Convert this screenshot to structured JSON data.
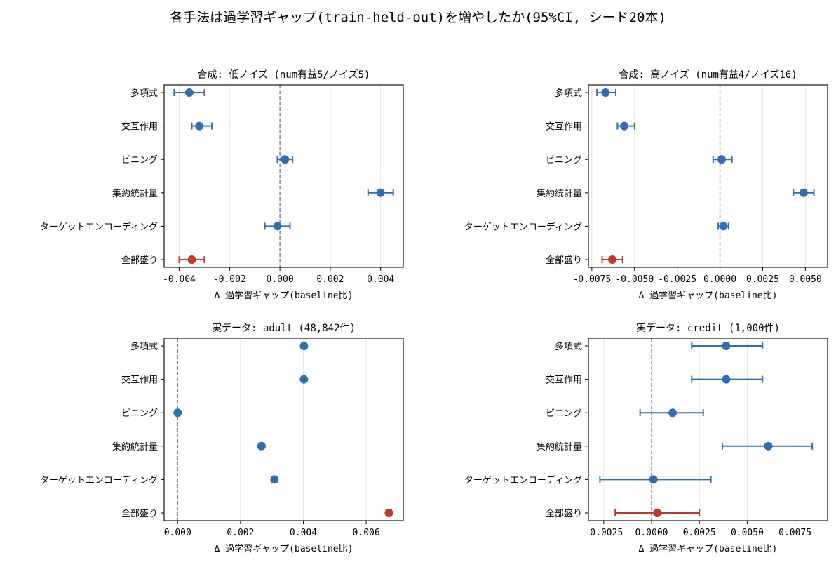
{
  "figure": {
    "title": "各手法は過学習ギャップ(train-held-out)を増やしたか(95%CI, シード20本)"
  },
  "colors": {
    "method": "#2f6db5",
    "combined": "#c0392b",
    "zero_line": "#808080",
    "grid": "#e6e6e6"
  },
  "chart_data": [
    {
      "type": "scatter",
      "subtype": "dot-and-whisker",
      "title": "合成: 低ノイズ (num有益5/ノイズ5)",
      "xlabel": "Δ 過学習ギャップ(baseline比)",
      "categories": [
        "多項式",
        "交互作用",
        "ビニング",
        "集約統計量",
        "ターゲットエンコーディング",
        "全部盛り"
      ],
      "values": [
        -0.0036,
        -0.0032,
        0.0002,
        0.004,
        -0.0001,
        -0.0035
      ],
      "ci_low": [
        -0.0042,
        -0.0035,
        -0.0001,
        0.0035,
        -0.0006,
        -0.004
      ],
      "ci_high": [
        -0.003,
        -0.0027,
        0.0005,
        0.0045,
        0.0004,
        -0.003
      ],
      "xlim": [
        -0.0046,
        0.0049
      ],
      "xticks": [
        -0.004,
        -0.002,
        0.0,
        0.002,
        0.004
      ],
      "xtick_labels": [
        "-0.004",
        "-0.002",
        "0.000",
        "0.002",
        "0.004"
      ],
      "reference_line": 0,
      "grid": "x",
      "highlight": "全部盛り"
    },
    {
      "type": "scatter",
      "subtype": "dot-and-whisker",
      "title": "合成: 高ノイズ (num有益4/ノイズ16)",
      "xlabel": "Δ 過学習ギャップ(baseline比)",
      "categories": [
        "多項式",
        "交互作用",
        "ビニング",
        "集約統計量",
        "ターゲットエンコーディング",
        "全部盛り"
      ],
      "values": [
        -0.0067,
        -0.0056,
        0.0001,
        0.0049,
        0.0002,
        -0.0063
      ],
      "ci_low": [
        -0.0072,
        -0.006,
        -0.0004,
        0.0043,
        -0.0001,
        -0.0069
      ],
      "ci_high": [
        -0.0061,
        -0.005,
        0.0007,
        0.0055,
        0.0005,
        -0.0057
      ],
      "xlim": [
        -0.0077,
        0.0063
      ],
      "xticks": [
        -0.0075,
        -0.005,
        -0.0025,
        0.0,
        0.0025,
        0.005
      ],
      "xtick_labels": [
        "-0.0075",
        "-0.0050",
        "-0.0025",
        "0.0000",
        "0.0025",
        "0.0050"
      ],
      "reference_line": 0,
      "grid": "x",
      "highlight": "全部盛り"
    },
    {
      "type": "scatter",
      "subtype": "dot-and-whisker",
      "title": "実データ: adult (48,842件)",
      "xlabel": "Δ 過学習ギャップ(baseline比)",
      "categories": [
        "多項式",
        "交互作用",
        "ビニング",
        "集約統計量",
        "ターゲットエンコーディング",
        "全部盛り"
      ],
      "values": [
        0.00402,
        0.00402,
        0.0,
        0.00267,
        0.00308,
        0.00672
      ],
      "ci_low": [
        0.00398,
        0.00398,
        -2e-05,
        0.0026,
        0.00301,
        0.00664
      ],
      "ci_high": [
        0.00406,
        0.00406,
        2e-05,
        0.00273,
        0.00315,
        0.0068
      ],
      "xlim": [
        -0.00043,
        0.00718
      ],
      "xticks": [
        0.0,
        0.002,
        0.004,
        0.006
      ],
      "xtick_labels": [
        "0.000",
        "0.002",
        "0.004",
        "0.006"
      ],
      "reference_line": 0,
      "grid": "x",
      "highlight": "全部盛り"
    },
    {
      "type": "scatter",
      "subtype": "dot-and-whisker",
      "title": "実データ: credit (1,000件)",
      "xlabel": "Δ 過学習ギャップ(baseline比)",
      "categories": [
        "多項式",
        "交互作用",
        "ビニング",
        "集約統計量",
        "ターゲットエンコーディング",
        "全部盛り"
      ],
      "values": [
        0.0039,
        0.0039,
        0.0011,
        0.0061,
        0.0001,
        0.0003
      ],
      "ci_low": [
        0.0021,
        0.0021,
        -0.0006,
        0.0037,
        -0.0027,
        -0.0019
      ],
      "ci_high": [
        0.0058,
        0.0058,
        0.0027,
        0.0084,
        0.0031,
        0.0025
      ],
      "xlim": [
        -0.0033,
        0.0092
      ],
      "xticks": [
        -0.0025,
        0.0,
        0.0025,
        0.005,
        0.0075
      ],
      "xtick_labels": [
        "-0.0025",
        "0.0000",
        "0.0025",
        "0.0050",
        "0.0075"
      ],
      "reference_line": 0,
      "grid": "x",
      "highlight": "全部盛り"
    }
  ]
}
